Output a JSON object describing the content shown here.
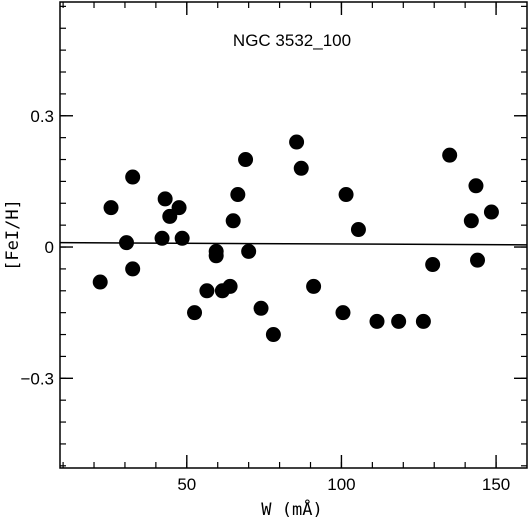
{
  "chart_data": {
    "type": "scatter",
    "title": "NGC 3532_100",
    "xlabel": "W (mÅ)",
    "ylabel": "[FeI/H]",
    "xlim": [
      9,
      160
    ],
    "ylim": [
      -0.505,
      0.56
    ],
    "xticks": [
      50,
      100,
      150
    ],
    "xtick_labels": [
      "50",
      "100",
      "150"
    ],
    "yticks": [
      0.3,
      0,
      -0.3
    ],
    "ytick_labels": [
      "0.3",
      "0",
      "−0.3"
    ],
    "grid": false,
    "fit_line": {
      "x": [
        9,
        160
      ],
      "y": [
        0.01,
        0.005
      ]
    },
    "points": [
      {
        "x": 22.0,
        "y": -0.08
      },
      {
        "x": 25.5,
        "y": 0.09
      },
      {
        "x": 30.5,
        "y": 0.01
      },
      {
        "x": 32.5,
        "y": 0.16
      },
      {
        "x": 32.5,
        "y": -0.05
      },
      {
        "x": 42.0,
        "y": 0.02
      },
      {
        "x": 43.0,
        "y": 0.11
      },
      {
        "x": 44.5,
        "y": 0.07
      },
      {
        "x": 47.5,
        "y": 0.09
      },
      {
        "x": 48.5,
        "y": 0.02
      },
      {
        "x": 52.5,
        "y": -0.15
      },
      {
        "x": 56.5,
        "y": -0.1
      },
      {
        "x": 59.5,
        "y": -0.01
      },
      {
        "x": 59.5,
        "y": -0.02
      },
      {
        "x": 61.5,
        "y": -0.1
      },
      {
        "x": 64.0,
        "y": -0.09
      },
      {
        "x": 65.0,
        "y": 0.06
      },
      {
        "x": 66.5,
        "y": 0.12
      },
      {
        "x": 69.0,
        "y": 0.2
      },
      {
        "x": 70.0,
        "y": -0.01
      },
      {
        "x": 74.0,
        "y": -0.14
      },
      {
        "x": 78.0,
        "y": -0.2
      },
      {
        "x": 85.5,
        "y": 0.24
      },
      {
        "x": 87.0,
        "y": 0.18
      },
      {
        "x": 91.0,
        "y": -0.09
      },
      {
        "x": 100.5,
        "y": -0.15
      },
      {
        "x": 101.5,
        "y": 0.12
      },
      {
        "x": 105.5,
        "y": 0.04
      },
      {
        "x": 111.5,
        "y": -0.17
      },
      {
        "x": 118.5,
        "y": -0.17
      },
      {
        "x": 126.5,
        "y": -0.17
      },
      {
        "x": 129.5,
        "y": -0.04
      },
      {
        "x": 135.0,
        "y": 0.21
      },
      {
        "x": 142.0,
        "y": 0.06
      },
      {
        "x": 143.5,
        "y": 0.14
      },
      {
        "x": 144.0,
        "y": -0.03
      },
      {
        "x": 148.5,
        "y": 0.08
      }
    ]
  }
}
